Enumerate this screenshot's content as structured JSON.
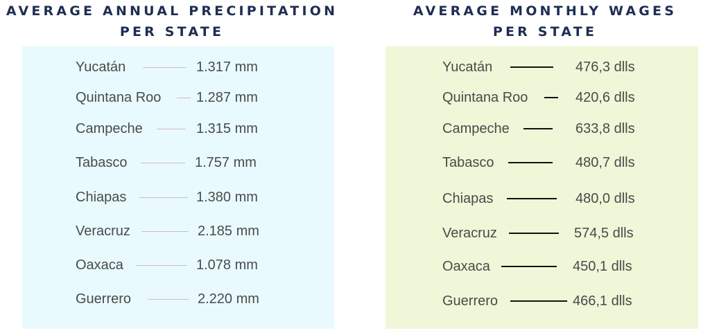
{
  "precipitation": {
    "title_line1": "AVERAGE ANNUAL PRECIPITATION",
    "title_line2": "PER STATE",
    "panel_color": "#e8fafd",
    "rows": [
      {
        "state": "Yucatán",
        "value": "1.317 mm"
      },
      {
        "state": "Quintana Roo",
        "value": "1.287 mm"
      },
      {
        "state": "Campeche",
        "value": "1.315 mm"
      },
      {
        "state": "Tabasco",
        "value": "1.757 mm"
      },
      {
        "state": "Chiapas",
        "value": "1.380 mm"
      },
      {
        "state": "Veracruz",
        "value": "2.185 mm"
      },
      {
        "state": "Oaxaca",
        "value": "1.078 mm"
      },
      {
        "state": "Guerrero",
        "value": "2.220 mm"
      }
    ]
  },
  "wages": {
    "title_line1": "AVERAGE MONTHLY WAGES",
    "title_line2": "PER STATE",
    "panel_color": "#eff7d8",
    "rows": [
      {
        "state": "Yucatán",
        "value": "476,3 dlls"
      },
      {
        "state": "Quintana Roo",
        "value": "420,6 dlls"
      },
      {
        "state": "Campeche",
        "value": "633,8 dlls"
      },
      {
        "state": "Tabasco",
        "value": "480,7 dlls"
      },
      {
        "state": "Chiapas",
        "value": "480,0 dlls"
      },
      {
        "state": "Veracruz",
        "value": "574,5 dlls"
      },
      {
        "state": "Oaxaca",
        "value": "450,1 dlls"
      },
      {
        "state": "Guerrero",
        "value": "466,1 dlls"
      }
    ]
  }
}
